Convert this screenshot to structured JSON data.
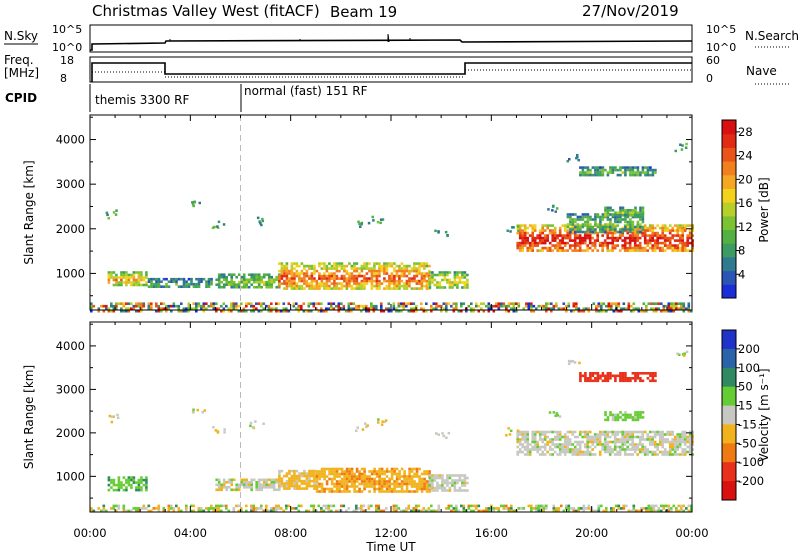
{
  "header": {
    "title": "Christmas Valley West (fitACF)",
    "beam": "Beam 19",
    "date": "27/Nov/2019"
  },
  "params": {
    "nsky_label": "N.Sky",
    "nsky_ticks": [
      "10^5",
      "10^0"
    ],
    "nsearch_label": "N.Search",
    "freq_label_line1": "Freq.",
    "freq_label_line2": "[MHz]",
    "freq_ticks": [
      "18",
      "8"
    ],
    "nave_label": "Nave",
    "nave_ticks": [
      "60",
      "0"
    ],
    "cpid_label": "CPID",
    "cpid_segments": [
      "themis 3300 RF",
      "normal (fast) 151 RF"
    ]
  },
  "chart_data": [
    {
      "type": "heatmap",
      "name": "power",
      "ylabel": "Slant Range [km]",
      "xlabel": "Time UT",
      "x_ticks": [
        "00:00",
        "04:00",
        "08:00",
        "12:00",
        "16:00",
        "20:00",
        "00:00"
      ],
      "xlim_hours": [
        0,
        24
      ],
      "y_ticks": [
        1000,
        2000,
        3000,
        4000
      ],
      "ylim": [
        180,
        4550
      ],
      "colorbar": {
        "label": "Power [dB]",
        "ticks": [
          4,
          8,
          12,
          16,
          20,
          24,
          28
        ],
        "range": [
          0,
          30
        ]
      },
      "regions": [
        {
          "t0": 0.7,
          "t1": 2.2,
          "r0": 750,
          "r1": 1050,
          "value": 18
        },
        {
          "t0": 2.3,
          "t1": 4.8,
          "r0": 700,
          "r1": 900,
          "value": 8
        },
        {
          "t0": 5.0,
          "t1": 7.5,
          "r0": 700,
          "r1": 1000,
          "value": 12
        },
        {
          "t0": 7.5,
          "t1": 13.5,
          "r0": 650,
          "r1": 1250,
          "value": 22
        },
        {
          "t0": 13.5,
          "t1": 15.0,
          "r0": 700,
          "r1": 1050,
          "value": 16
        },
        {
          "t0": 17.0,
          "t1": 24.0,
          "r0": 1500,
          "r1": 2100,
          "value": 26
        },
        {
          "t0": 19.0,
          "t1": 22.0,
          "r0": 1950,
          "r1": 2350,
          "value": 10
        },
        {
          "t0": 20.5,
          "t1": 22.0,
          "r0": 2300,
          "r1": 2500,
          "value": 12
        },
        {
          "t0": 19.5,
          "t1": 22.5,
          "r0": 3200,
          "r1": 3400,
          "value": 10
        },
        {
          "t0": 0.0,
          "t1": 24.0,
          "r0": 180,
          "r1": 350,
          "value": 15
        }
      ]
    },
    {
      "type": "heatmap",
      "name": "velocity",
      "ylabel": "Slant Range [km]",
      "xlabel": "Time UT",
      "x_ticks": [
        "00:00",
        "04:00",
        "08:00",
        "12:00",
        "16:00",
        "20:00",
        "00:00"
      ],
      "xlim_hours": [
        0,
        24
      ],
      "y_ticks": [
        1000,
        2000,
        3000,
        4000
      ],
      "ylim": [
        180,
        4550
      ],
      "colorbar": {
        "label": "Velocity [m s⁻¹]",
        "ticks": [
          "200",
          "100",
          "50",
          "15",
          "-15",
          "-50",
          "-100",
          "-200"
        ]
      },
      "regions": [
        {
          "t0": 0.7,
          "t1": 2.2,
          "r0": 700,
          "r1": 1000,
          "value": 40
        },
        {
          "t0": 5.0,
          "t1": 7.5,
          "r0": 700,
          "r1": 950,
          "value": 0
        },
        {
          "t0": 7.5,
          "t1": 9.0,
          "r0": 700,
          "r1": 1150,
          "value": -30
        },
        {
          "t0": 9.0,
          "t1": 13.5,
          "r0": 650,
          "r1": 1200,
          "value": -40
        },
        {
          "t0": 13.5,
          "t1": 15.0,
          "r0": 700,
          "r1": 1050,
          "value": 0
        },
        {
          "t0": 17.0,
          "t1": 24.0,
          "r0": 1500,
          "r1": 2050,
          "value": 0
        },
        {
          "t0": 20.5,
          "t1": 22.0,
          "r0": 2300,
          "r1": 2500,
          "value": 30
        },
        {
          "t0": 19.5,
          "t1": 22.5,
          "r0": 3200,
          "r1": 3400,
          "value": -150
        },
        {
          "t0": 0.0,
          "t1": 24.0,
          "r0": 180,
          "r1": 350,
          "value": -20
        }
      ]
    }
  ]
}
